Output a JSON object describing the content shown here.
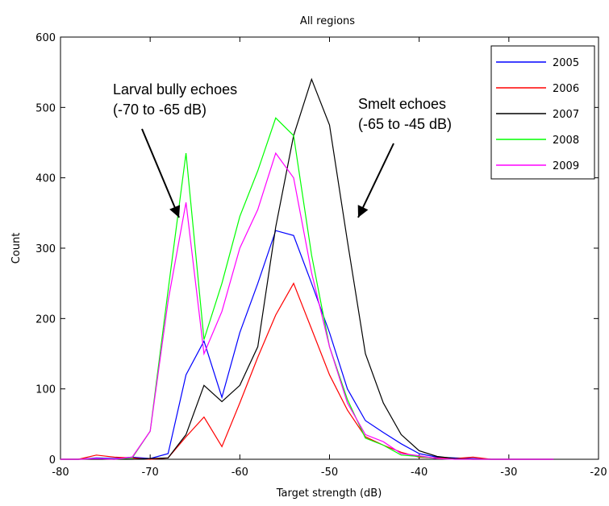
{
  "chart_data": {
    "type": "line",
    "title": "All regions",
    "xlabel": "Target strength (dB)",
    "ylabel": "Count",
    "xlim": [
      -80,
      -20
    ],
    "ylim": [
      0,
      600
    ],
    "xticks": [
      -80,
      -70,
      -60,
      -50,
      -40,
      -30,
      -20
    ],
    "yticks": [
      0,
      100,
      200,
      300,
      400,
      500,
      600
    ],
    "grid": false,
    "legend_position": "top-right",
    "x": [
      -80,
      -78,
      -76,
      -74,
      -72,
      -70,
      -68,
      -66,
      -64,
      -62,
      -60,
      -58,
      -56,
      -54,
      -52,
      -50,
      -48,
      -46,
      -44,
      -42,
      -40,
      -38,
      -36,
      -34,
      -32,
      -30,
      -28,
      -26,
      -25
    ],
    "series": [
      {
        "name": "2005",
        "color": "#0000ff",
        "values": [
          0,
          0,
          2,
          1,
          3,
          1,
          8,
          120,
          168,
          88,
          180,
          250,
          325,
          318,
          250,
          180,
          100,
          55,
          38,
          22,
          8,
          3,
          2,
          1,
          0,
          0,
          0,
          0,
          0
        ]
      },
      {
        "name": "2006",
        "color": "#ff0000",
        "values": [
          0,
          0,
          6,
          3,
          2,
          0,
          2,
          32,
          60,
          18,
          80,
          145,
          205,
          250,
          185,
          120,
          70,
          32,
          20,
          10,
          3,
          2,
          1,
          3,
          0,
          0,
          0,
          0,
          0
        ]
      },
      {
        "name": "2007",
        "color": "#000000",
        "values": [
          0,
          0,
          0,
          0,
          0,
          1,
          2,
          35,
          105,
          82,
          105,
          160,
          330,
          460,
          540,
          475,
          310,
          150,
          80,
          35,
          12,
          4,
          1,
          0,
          0,
          0,
          0,
          0,
          0
        ]
      },
      {
        "name": "2008",
        "color": "#00ff00",
        "values": [
          0,
          0,
          1,
          0,
          2,
          40,
          240,
          435,
          170,
          250,
          345,
          410,
          485,
          460,
          290,
          160,
          85,
          30,
          20,
          6,
          4,
          1,
          0,
          0,
          0,
          0,
          0,
          0,
          0
        ]
      },
      {
        "name": "2009",
        "color": "#ff00ff",
        "values": [
          0,
          0,
          1,
          0,
          3,
          40,
          225,
          365,
          150,
          210,
          300,
          355,
          435,
          400,
          265,
          160,
          80,
          35,
          25,
          8,
          5,
          1,
          0,
          0,
          0,
          0,
          0,
          0,
          0
        ]
      }
    ],
    "annotations": [
      {
        "lines": [
          "Larval bully echoes",
          "(-70 to -65 dB)"
        ],
        "arrow_to": [
          -66,
          380
        ]
      },
      {
        "lines": [
          "Smelt echoes",
          "(-65 to -45 dB)"
        ],
        "arrow_to": [
          -49,
          380
        ]
      }
    ]
  }
}
